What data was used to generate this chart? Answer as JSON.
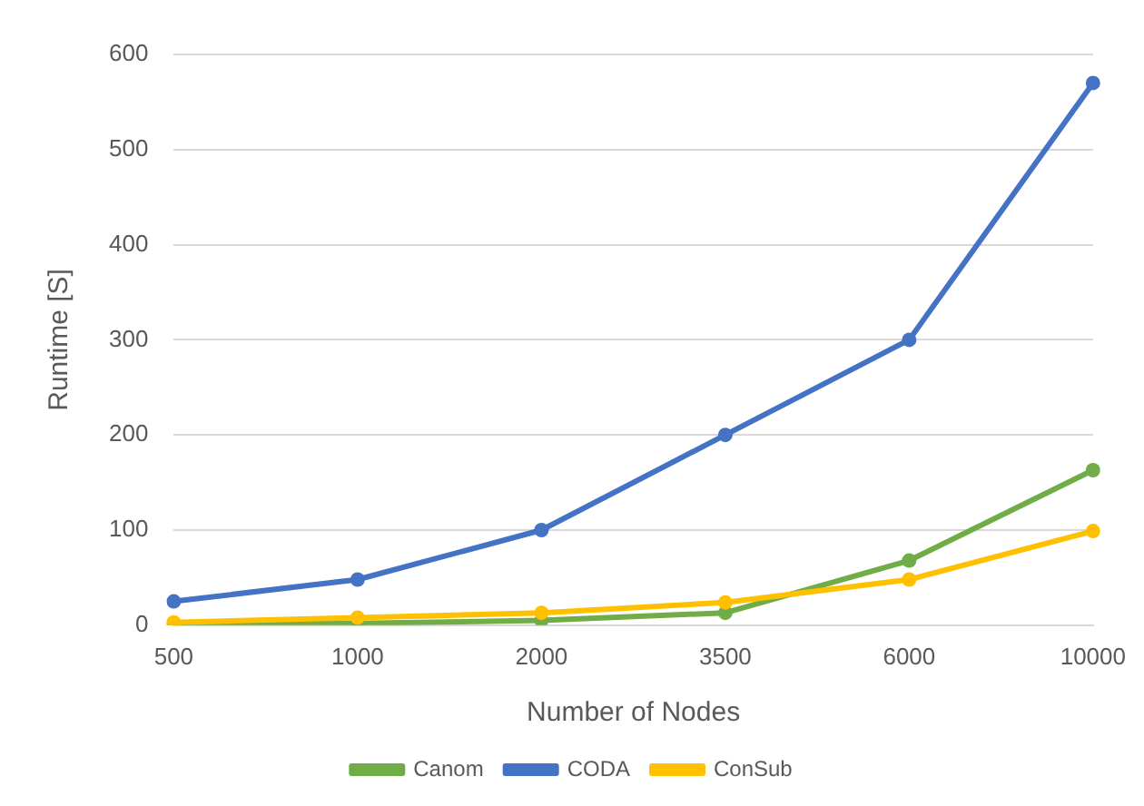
{
  "chart_data": {
    "type": "line",
    "xlabel": "Number of Nodes",
    "ylabel": "Runtime [S]",
    "categories": [
      "500",
      "1000",
      "2000",
      "3500",
      "6000",
      "10000"
    ],
    "series": [
      {
        "name": "Canom",
        "color": "#70ad47",
        "values": [
          1,
          2,
          5,
          13,
          68,
          163
        ]
      },
      {
        "name": "CODA",
        "color": "#4472c4",
        "values": [
          25,
          48,
          100,
          200,
          300,
          570
        ]
      },
      {
        "name": "ConSub",
        "color": "#ffc000",
        "values": [
          3,
          8,
          13,
          24,
          48,
          99
        ]
      }
    ],
    "ylim": [
      0,
      600
    ],
    "yticks": [
      0,
      100,
      200,
      300,
      400,
      500,
      600
    ],
    "grid": "y",
    "legend": "bottom",
    "marker": "circle",
    "line_style": "solid"
  }
}
